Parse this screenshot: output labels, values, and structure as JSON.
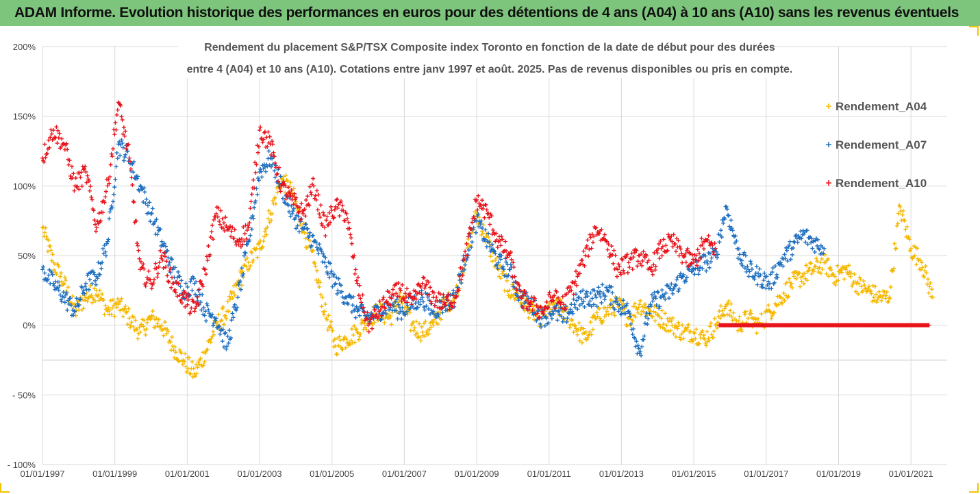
{
  "header": {
    "title": "ADAM Informe. Evolution historique des performances en euros pour des détentions de 4 ans (A04) à 10 ans (A10) sans les revenus éventuels"
  },
  "chart_data": {
    "type": "scatter",
    "subtitle_line1": "Rendement du placement S&P/TSX Composite index Toronto en fonction de la date de début pour des durées",
    "subtitle_line2": "entre 4 (A04) et 10 ans (A10). Cotations entre janv 1997 et août. 2025. Pas de revenus disponibles ou pris en compte.",
    "xlabel": "",
    "ylabel": "",
    "x_unit": "date de début (année)",
    "x_range": [
      1997.0,
      2022.0
    ],
    "ylim": [
      -100,
      200
    ],
    "y_ticks": [
      "200%",
      "150%",
      "100%",
      "50%",
      "0%",
      "- 50%",
      "- 100%"
    ],
    "x_ticks": [
      "01/01/1997",
      "01/01/1999",
      "01/01/2001",
      "01/01/2003",
      "01/01/2005",
      "01/01/2007",
      "01/01/2009",
      "01/01/2011",
      "01/01/2013",
      "01/01/2015",
      "01/01/2017",
      "01/01/2019",
      "01/01/2021"
    ],
    "grid": true,
    "legend_position": "right",
    "marker": "+",
    "series": [
      {
        "name": "Rendement_A04",
        "color": "#f5b800",
        "x": [
          1997.0,
          1997.3,
          1997.6,
          1997.9,
          1998.2,
          1998.5,
          1998.8,
          1999.1,
          1999.4,
          1999.7,
          2000.0,
          2000.3,
          2000.6,
          2000.9,
          2001.2,
          2001.5,
          2001.8,
          2002.1,
          2002.4,
          2002.7,
          2003.0,
          2003.3,
          2003.6,
          2003.9,
          2004.2,
          2004.5,
          2004.8,
          2005.1,
          2005.4,
          2005.7,
          2006.0,
          2006.3,
          2006.6,
          2006.9,
          2007.2,
          2007.5,
          2007.8,
          2008.1,
          2008.4,
          2008.7,
          2009.0,
          2009.3,
          2009.6,
          2009.9,
          2010.2,
          2010.5,
          2010.8,
          2011.1,
          2011.4,
          2011.7,
          2012.0,
          2012.3,
          2012.6,
          2012.9,
          2013.2,
          2013.5,
          2013.8,
          2014.1,
          2014.4,
          2014.7,
          2015.0,
          2015.3,
          2015.6,
          2015.9,
          2016.2,
          2016.5,
          2016.8,
          2017.1,
          2017.4,
          2017.7,
          2018.0,
          2018.3,
          2018.6,
          2018.9,
          2019.2,
          2019.5,
          2019.8,
          2020.1,
          2020.4,
          2020.7,
          2021.0,
          2021.3,
          2021.6
        ],
        "y": [
          70,
          45,
          30,
          10,
          20,
          25,
          10,
          15,
          5,
          -5,
          5,
          0,
          -15,
          -25,
          -35,
          -20,
          0,
          10,
          30,
          45,
          55,
          80,
          105,
          95,
          70,
          45,
          10,
          -15,
          -10,
          -5,
          5,
          10,
          5,
          20,
          0,
          -5,
          0,
          15,
          20,
          50,
          80,
          60,
          40,
          25,
          20,
          10,
          5,
          15,
          10,
          0,
          -10,
          5,
          10,
          15,
          5,
          15,
          10,
          5,
          0,
          -5,
          -5,
          -10,
          0,
          15,
          0,
          5,
          0,
          10,
          20,
          30,
          35,
          40,
          45,
          35,
          40,
          30,
          25,
          20,
          20,
          85,
          55,
          45,
          20
        ]
      },
      {
        "name": "Rendement_A07",
        "color": "#1f6fc0",
        "x": [
          1997.0,
          1997.3,
          1997.6,
          1997.9,
          1998.2,
          1998.5,
          1998.8,
          1999.1,
          1999.4,
          1999.7,
          2000.0,
          2000.3,
          2000.6,
          2000.9,
          2001.2,
          2001.5,
          2001.8,
          2002.1,
          2002.4,
          2002.7,
          2003.0,
          2003.3,
          2003.6,
          2003.9,
          2004.2,
          2004.5,
          2004.8,
          2005.1,
          2005.4,
          2005.7,
          2006.0,
          2006.3,
          2006.6,
          2006.9,
          2007.2,
          2007.5,
          2007.8,
          2008.1,
          2008.4,
          2008.7,
          2009.0,
          2009.3,
          2009.6,
          2009.9,
          2010.2,
          2010.5,
          2010.8,
          2011.1,
          2011.4,
          2011.7,
          2012.0,
          2012.3,
          2012.6,
          2012.9,
          2013.2,
          2013.5,
          2013.8,
          2014.1,
          2014.4,
          2014.7,
          2015.0,
          2015.3,
          2015.6,
          2015.9,
          2016.2,
          2016.5,
          2016.8,
          2017.1,
          2017.4,
          2017.7,
          2018.0,
          2018.3,
          2018.6
        ],
        "y": [
          40,
          30,
          20,
          10,
          30,
          35,
          60,
          130,
          120,
          100,
          80,
          60,
          40,
          25,
          30,
          10,
          5,
          -15,
          20,
          60,
          110,
          120,
          100,
          80,
          70,
          60,
          45,
          30,
          20,
          10,
          5,
          10,
          15,
          10,
          15,
          20,
          10,
          15,
          20,
          50,
          75,
          60,
          45,
          40,
          20,
          15,
          5,
          10,
          5,
          15,
          20,
          20,
          25,
          15,
          10,
          -20,
          15,
          20,
          25,
          35,
          40,
          45,
          50,
          85,
          55,
          40,
          35,
          30,
          45,
          55,
          65,
          60,
          55
        ]
      },
      {
        "name": "Rendement_A10",
        "color": "#e8141c",
        "x": [
          1997.0,
          1997.3,
          1997.6,
          1997.9,
          1998.2,
          1998.5,
          1998.8,
          1999.1,
          1999.4,
          1999.7,
          2000.0,
          2000.3,
          2000.6,
          2000.9,
          2001.2,
          2001.5,
          2001.8,
          2002.1,
          2002.4,
          2002.7,
          2003.0,
          2003.3,
          2003.6,
          2003.9,
          2004.2,
          2004.5,
          2004.8,
          2005.1,
          2005.4,
          2005.7,
          2006.0,
          2006.3,
          2006.6,
          2006.9,
          2007.2,
          2007.5,
          2007.8,
          2008.1,
          2008.4,
          2008.7,
          2009.0,
          2009.3,
          2009.6,
          2009.9,
          2010.2,
          2010.5,
          2010.8,
          2011.1,
          2011.4,
          2011.7,
          2012.0,
          2012.3,
          2012.6,
          2012.9,
          2013.2,
          2013.5,
          2013.8,
          2014.1,
          2014.4,
          2014.7,
          2015.0,
          2015.3,
          2015.6
        ],
        "y": [
          120,
          140,
          130,
          100,
          110,
          70,
          100,
          160,
          120,
          40,
          30,
          50,
          30,
          20,
          10,
          40,
          80,
          70,
          60,
          70,
          140,
          130,
          100,
          90,
          80,
          100,
          70,
          85,
          80,
          30,
          0,
          10,
          20,
          25,
          15,
          30,
          20,
          15,
          20,
          50,
          90,
          80,
          60,
          50,
          20,
          15,
          10,
          20,
          15,
          30,
          50,
          70,
          60,
          40,
          45,
          50,
          40,
          55,
          60,
          50,
          45,
          60,
          55
        ]
      },
      {
        "name": "Rendement_A10",
        "color": "#e8141c",
        "x": [
          2015.7,
          2021.5
        ],
        "y": [
          0,
          0
        ],
        "style": "flat"
      }
    ]
  }
}
